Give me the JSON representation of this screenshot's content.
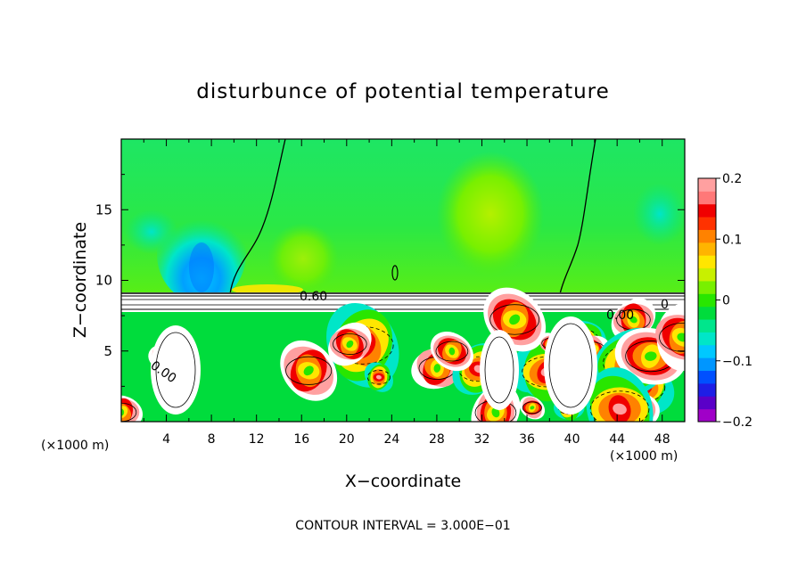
{
  "chart_data": {
    "type": "heatmap",
    "title": "disturbunce of potential temperature",
    "xlabel": "X−coordinate",
    "ylabel": "Z−coordinate",
    "x_unit_left": "(×1000 m)",
    "x_unit_right": "(×1000 m)",
    "footer": "CONTOUR INTERVAL = 3.000E−01",
    "xlim": [
      0,
      50
    ],
    "ylim": [
      0,
      20
    ],
    "x_ticks": [
      4,
      8,
      12,
      16,
      20,
      24,
      28,
      32,
      36,
      40,
      44,
      48
    ],
    "x_tick_labels": [
      "4",
      "8",
      "12",
      "16",
      "20",
      "24",
      "28",
      "32",
      "36",
      "40",
      "44",
      "48"
    ],
    "y_ticks": [
      5,
      10,
      15
    ],
    "y_tick_labels": [
      "5",
      "10",
      "15"
    ],
    "colorbar": {
      "range": [
        -0.2,
        0.2
      ],
      "ticks": [
        0.2,
        0.1,
        0,
        -0.1,
        -0.2
      ],
      "tick_labels": [
        "0.2",
        "0.1",
        "0",
        "−0.1",
        "−0.2"
      ],
      "colors": [
        "#a000c8",
        "#5a00c8",
        "#1e1ee6",
        "#0050ff",
        "#0096ff",
        "#00c8ff",
        "#00e6c8",
        "#00e68c",
        "#00dc3c",
        "#28e600",
        "#78f000",
        "#c8f000",
        "#ffe600",
        "#ffb400",
        "#ff8200",
        "#ff3200",
        "#f00000",
        "#ff7878",
        "#ffa0a0"
      ]
    },
    "contour_labels": [
      "0.60",
      "0.60",
      "0.00",
      "0.00",
      "0.00",
      "0.00",
      "0"
    ]
  }
}
